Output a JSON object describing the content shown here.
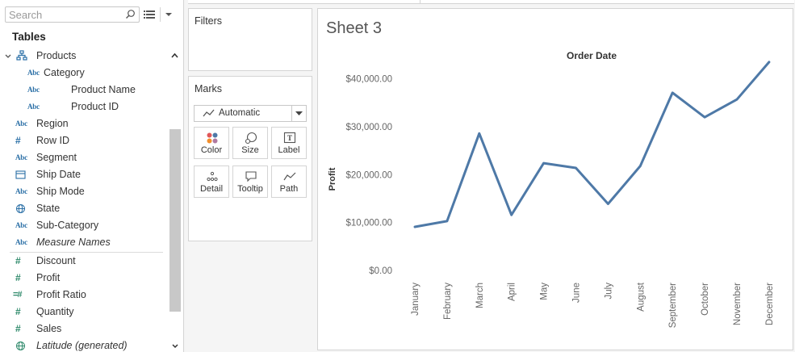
{
  "data_pane": {
    "search_placeholder": "Search",
    "tables_heading": "Tables",
    "fields": [
      {
        "name": "Products",
        "icon": "hierarchy-icon",
        "kind": "hierarchy",
        "expanded": true
      },
      {
        "name": "Category",
        "icon": "abc-icon",
        "kind": "dimension"
      },
      {
        "name": "Product Name",
        "icon": "abc-icon",
        "kind": "dimension"
      },
      {
        "name": "Product ID",
        "icon": "abc-icon",
        "kind": "dimension"
      },
      {
        "name": "Region",
        "icon": "abc-icon",
        "kind": "dimension"
      },
      {
        "name": "Row ID",
        "icon": "number-icon",
        "kind": "dimension"
      },
      {
        "name": "Segment",
        "icon": "abc-icon",
        "kind": "dimension"
      },
      {
        "name": "Ship Date",
        "icon": "calendar-icon",
        "kind": "dimension"
      },
      {
        "name": "Ship Mode",
        "icon": "abc-icon",
        "kind": "dimension"
      },
      {
        "name": "State",
        "icon": "globe-icon",
        "kind": "dimension"
      },
      {
        "name": "Sub-Category",
        "icon": "abc-icon",
        "kind": "dimension"
      },
      {
        "name": "Measure Names",
        "icon": "abc-icon",
        "kind": "dimension",
        "italic": true
      },
      {
        "name": "Discount",
        "icon": "number-icon",
        "kind": "measure"
      },
      {
        "name": "Profit",
        "icon": "number-icon",
        "kind": "measure"
      },
      {
        "name": "Profit Ratio",
        "icon": "calc-number-icon",
        "kind": "measure"
      },
      {
        "name": "Quantity",
        "icon": "number-icon",
        "kind": "measure"
      },
      {
        "name": "Sales",
        "icon": "number-icon",
        "kind": "measure"
      },
      {
        "name": "Latitude (generated)",
        "icon": "globe-icon",
        "kind": "measure",
        "italic": true
      }
    ]
  },
  "filters": {
    "title": "Filters"
  },
  "marks": {
    "title": "Marks",
    "mark_type": "Automatic",
    "buttons": [
      {
        "label": "Color",
        "icon": "color-icon"
      },
      {
        "label": "Size",
        "icon": "size-icon"
      },
      {
        "label": "Label",
        "icon": "label-icon"
      },
      {
        "label": "Detail",
        "icon": "detail-icon"
      },
      {
        "label": "Tooltip",
        "icon": "tooltip-icon"
      },
      {
        "label": "Path",
        "icon": "path-icon"
      }
    ]
  },
  "sheet": {
    "title": "Sheet 3"
  },
  "colors": {
    "line": "#4e79a7",
    "measure_icon": "#2f8a6b",
    "dimension_icon": "#2a6fa6"
  },
  "chart_data": {
    "type": "line",
    "title": "Order Date",
    "xlabel": "",
    "ylabel": "Profit",
    "categories": [
      "January",
      "February",
      "March",
      "April",
      "May",
      "June",
      "July",
      "August",
      "September",
      "October",
      "November",
      "December"
    ],
    "values": [
      9100,
      10300,
      28600,
      11600,
      22400,
      21400,
      13900,
      21800,
      37100,
      32000,
      35700,
      43500
    ],
    "ylim": [
      0,
      45000
    ],
    "yticks": [
      0,
      10000,
      20000,
      30000,
      40000
    ],
    "ytick_labels": [
      "$0.00",
      "$10,000.00",
      "$20,000.00",
      "$30,000.00",
      "$40,000.00"
    ],
    "grid": false,
    "series_color": "#4e79a7"
  }
}
